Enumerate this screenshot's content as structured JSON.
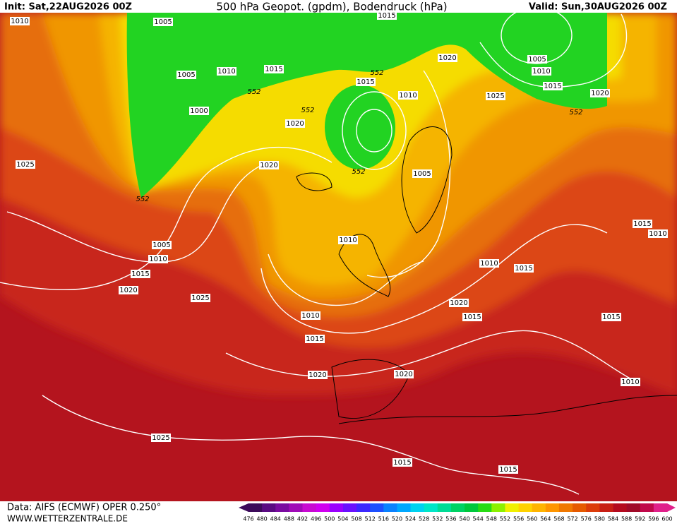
{
  "header": {
    "init": "Init: Sat,22AUG2026 00Z",
    "title": "500 hPa Geopot. (gpdm), Bodendruck (hPa)",
    "valid": "Valid: Sun,30AUG2026 00Z"
  },
  "footer": {
    "source": "Data: AIFS (ECMWF) OPER 0.250°",
    "site": "WWW.WETTERZENTRALE.DE"
  },
  "colorbar": {
    "labels": [
      476,
      480,
      484,
      488,
      492,
      496,
      500,
      504,
      508,
      512,
      516,
      520,
      524,
      528,
      532,
      536,
      540,
      544,
      548,
      552,
      556,
      560,
      564,
      568,
      572,
      576,
      580,
      584,
      588,
      592,
      596,
      600
    ],
    "colors": [
      "#3c0a5a",
      "#5a0a82",
      "#7a0aa0",
      "#a00ab8",
      "#c80ad2",
      "#d000f0",
      "#9a00ff",
      "#6a10ff",
      "#3c28ff",
      "#1e50ff",
      "#0a82ff",
      "#00a8ff",
      "#00d2f0",
      "#00e6c8",
      "#00dc96",
      "#00d264",
      "#00c83c",
      "#28dc14",
      "#8cf000",
      "#f0f000",
      "#ffd200",
      "#ffb400",
      "#ff9600",
      "#f07800",
      "#e65a00",
      "#dc3c0a",
      "#c81e14",
      "#b40a1e",
      "#a00a28",
      "#c0084a",
      "#e0208a"
    ]
  },
  "isobar_labels": [
    "1010",
    "1005",
    "1015",
    "1005",
    "1010",
    "1015",
    "552",
    "1000",
    "1020",
    "552",
    "552",
    "1015",
    "1010",
    "1020",
    "1005",
    "1010",
    "1015",
    "1025",
    "1020",
    "552",
    "1025",
    "1020",
    "552",
    "1005",
    "552",
    "1005",
    "1010",
    "1015",
    "1020",
    "1025",
    "1010",
    "1010",
    "1015",
    "1015",
    "1010",
    "1020",
    "1015",
    "1010",
    "1015",
    "1015",
    "1020",
    "1020",
    "1010",
    "1025",
    "1015",
    "1015"
  ]
}
